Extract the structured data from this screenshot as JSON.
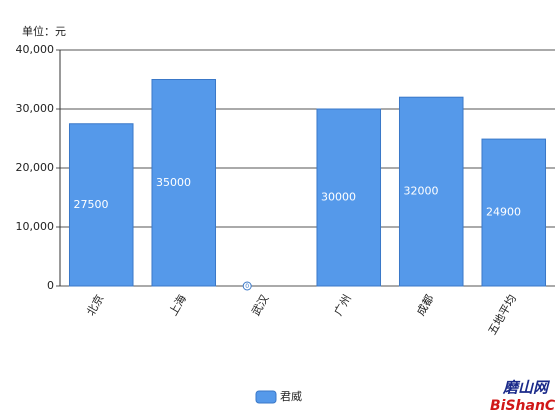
{
  "chart_data": {
    "type": "bar",
    "unit_label": "单位：元",
    "categories": [
      "北京",
      "上海",
      "武汉",
      "广州",
      "成都",
      "五地平均"
    ],
    "series": [
      {
        "name": "君威",
        "color": "#5599ea",
        "values": [
          27500,
          35000,
          0,
          30000,
          32000,
          24900
        ]
      }
    ],
    "ylim": [
      0,
      40000
    ],
    "yticks": [
      0,
      {
        "value": 10000,
        "label": "10,000"
      },
      {
        "value": 20000,
        "label": "20,000"
      },
      {
        "value": 30000,
        "label": "30,000"
      },
      {
        "value": 40000,
        "label": "40,000"
      }
    ],
    "grid": true,
    "legend": "bottom",
    "watermark": [
      "磨山网",
      "BiShanCa"
    ]
  }
}
